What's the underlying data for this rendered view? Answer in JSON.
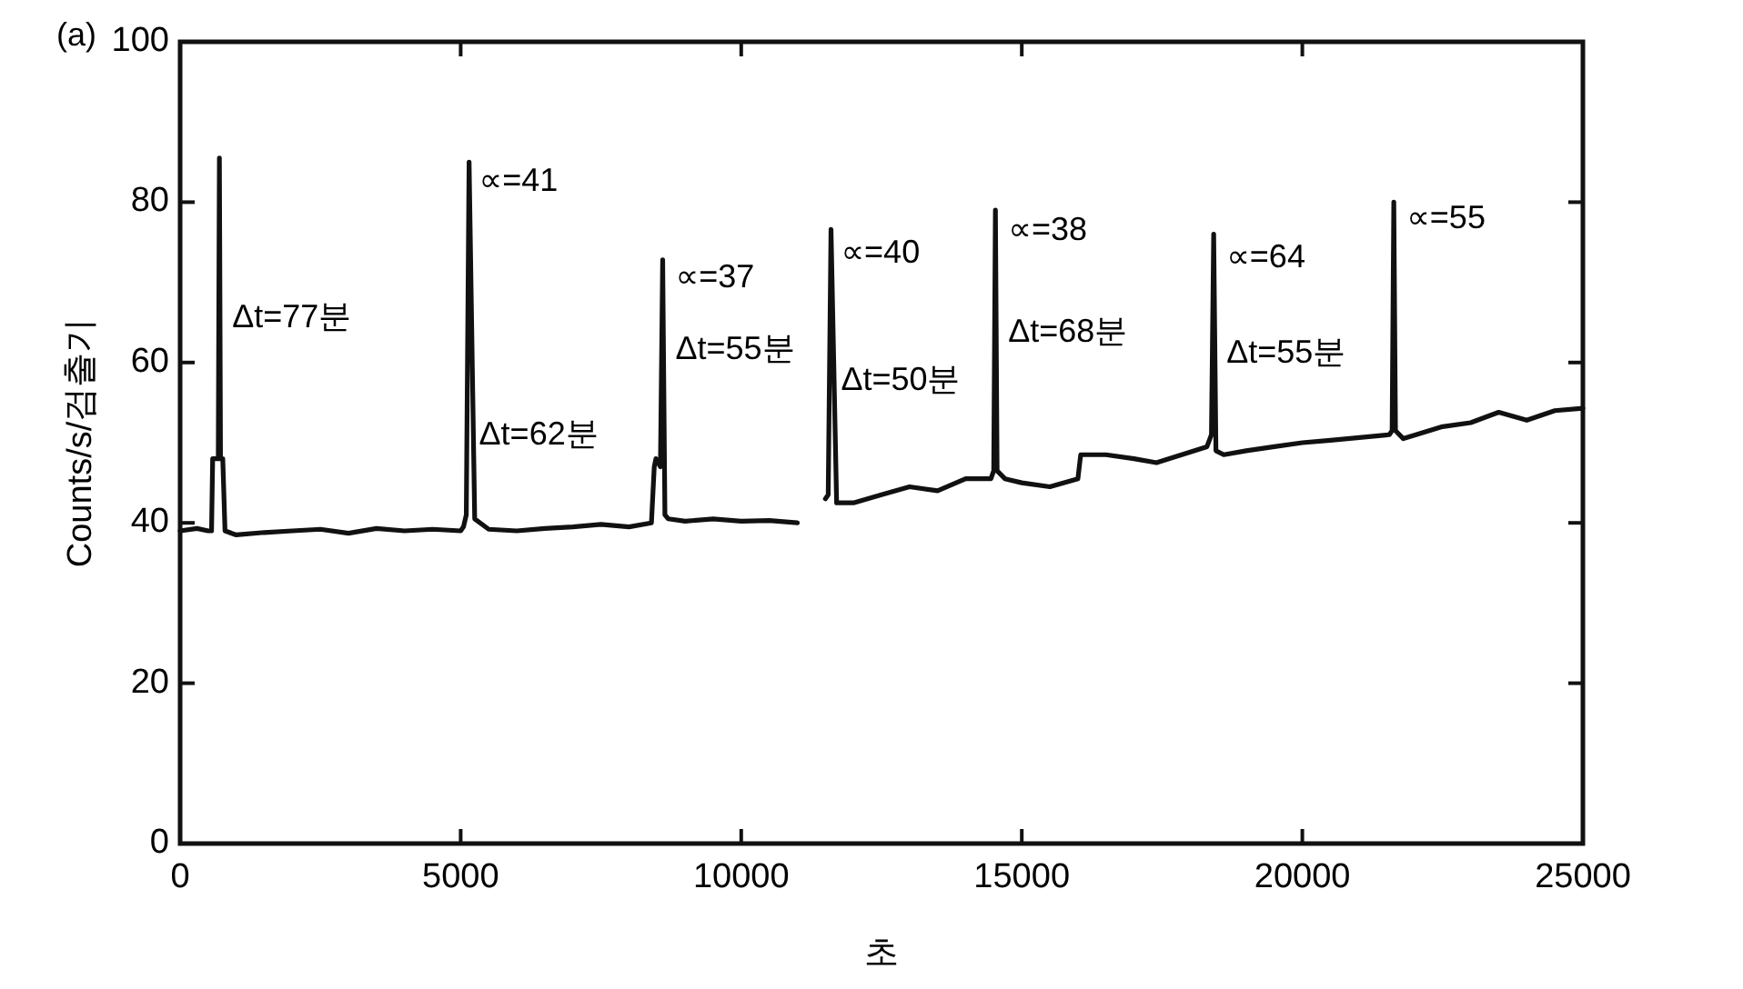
{
  "chart_data": {
    "type": "line",
    "title": "(a)",
    "xlabel": "초",
    "ylabel": "Counts/s/검출기",
    "xlim": [
      0,
      25000
    ],
    "ylim": [
      0,
      100
    ],
    "xticks": [
      0,
      5000,
      10000,
      15000,
      20000,
      25000
    ],
    "yticks": [
      0,
      20,
      40,
      60,
      80,
      100
    ],
    "grid": false,
    "marker": "none",
    "line_style": "solid",
    "series": [
      {
        "color": "#111111",
        "x": [
          0,
          300,
          500,
          560,
          580,
          650,
          680,
          700,
          720,
          760,
          800,
          1000,
          1500,
          2000,
          2500,
          3000,
          3500,
          4000,
          4500,
          5000,
          5050,
          5100,
          5150,
          5250,
          5500,
          6000,
          6500,
          7000,
          7500,
          8000,
          8400,
          8450,
          8480,
          8560,
          8600,
          8640,
          8700,
          9000,
          9500,
          10000,
          10500,
          11000,
          11100,
          11500,
          11550,
          11600,
          11700,
          12000,
          12500,
          13000,
          13500,
          14000,
          14450,
          14500,
          14530,
          14560,
          14700,
          15000,
          15500,
          16000,
          16050,
          16500,
          17000,
          17400,
          18300,
          18380,
          18420,
          18460,
          18600,
          19000,
          19500,
          20000,
          20500,
          21550,
          21600,
          21630,
          21660,
          21800,
          22500,
          23000,
          23500,
          24000,
          24500,
          25000
        ],
        "values": [
          39,
          39.3,
          39,
          39,
          48,
          48,
          48,
          85.5,
          48,
          48,
          39,
          38.5,
          38.8,
          39,
          39.2,
          38.7,
          39.3,
          39,
          39.2,
          39,
          39.5,
          41,
          85,
          40.5,
          39.2,
          39,
          39.3,
          39.5,
          39.8,
          39.5,
          40,
          47,
          48,
          47,
          72.8,
          41,
          40.5,
          40.2,
          40.5,
          40.2,
          40.3,
          40,
          null,
          43,
          43.5,
          76.6,
          42.5,
          42.5,
          43.5,
          44.5,
          44,
          45.5,
          45.5,
          46.5,
          79,
          46.5,
          45.5,
          45,
          44.5,
          45.5,
          48.5,
          48.5,
          48,
          47.5,
          49.5,
          51,
          76,
          49,
          48.5,
          49,
          49.5,
          50,
          50.3,
          51,
          51.5,
          80,
          51.5,
          50.5,
          52,
          52.5,
          53.8,
          52.8,
          54,
          54.3
        ]
      }
    ],
    "annotations": [
      {
        "text": "Δt=77분",
        "x": 700,
        "y": 65.5
      },
      {
        "text": "∝=41",
        "x": 5100,
        "y": 82.5
      },
      {
        "text": "Δt=62분",
        "x": 5100,
        "y": 50.8
      },
      {
        "text": "∝=37",
        "x": 8600,
        "y": 70.5
      },
      {
        "text": "Δt=55분",
        "x": 8600,
        "y": 61.5
      },
      {
        "text": "∝=40",
        "x": 11550,
        "y": 73.5
      },
      {
        "text": "Δt=50분",
        "x": 11550,
        "y": 57.6
      },
      {
        "text": "∝=38",
        "x": 14530,
        "y": 76.4
      },
      {
        "text": "Δt=68분",
        "x": 14530,
        "y": 63.7
      },
      {
        "text": "∝=64",
        "x": 18420,
        "y": 73
      },
      {
        "text": "Δt=55분",
        "x": 18420,
        "y": 61
      },
      {
        "text": "∝=55",
        "x": 21630,
        "y": 77.8
      }
    ]
  }
}
